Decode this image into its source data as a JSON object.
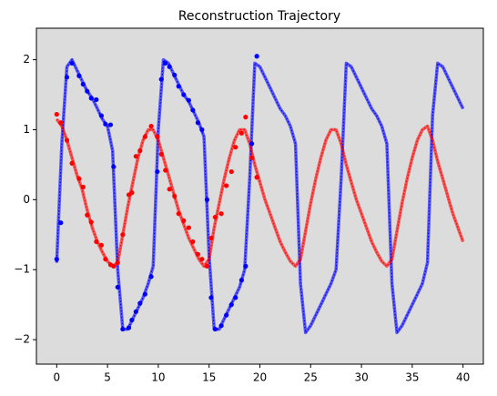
{
  "chart_data": {
    "type": "line",
    "title": "Reconstruction Trajectory",
    "background": "#dcdcdc",
    "xlim": [
      -2,
      42
    ],
    "ylim": [
      -2.35,
      2.45
    ],
    "xticks": [
      0,
      5,
      10,
      15,
      20,
      25,
      30,
      35,
      40
    ],
    "yticks": [
      {
        "value": -2,
        "label": "−2"
      },
      {
        "value": -1,
        "label": "−1"
      },
      0,
      1,
      2
    ],
    "x": [
      0,
      0.5,
      1,
      1.5,
      2,
      2.5,
      3,
      3.5,
      4,
      4.5,
      5,
      5.5,
      6,
      6.5,
      7,
      7.5,
      8,
      8.5,
      9,
      9.5,
      10,
      10.5,
      11,
      11.5,
      12,
      12.5,
      13,
      13.5,
      14,
      14.5,
      15,
      15.5,
      16,
      16.5,
      17,
      17.5,
      18,
      18.5,
      19,
      19.5,
      20,
      20.5,
      21,
      21.5,
      22,
      22.5,
      23,
      23.5,
      24,
      24.5,
      25,
      25.5,
      26,
      26.5,
      27,
      27.5,
      28,
      28.5,
      29,
      29.5,
      30,
      30.5,
      31,
      31.5,
      32,
      32.5,
      33,
      33.5,
      34,
      34.5,
      35,
      35.5,
      36,
      36.5,
      37,
      37.5,
      38,
      38.5,
      39,
      39.5,
      40
    ],
    "series": [
      {
        "color": "#0000ff",
        "values": [
          -0.9,
          0.8,
          1.9,
          2.0,
          1.85,
          1.7,
          1.55,
          1.45,
          1.3,
          1.15,
          1.05,
          0.7,
          -1.0,
          -1.85,
          -1.85,
          -1.7,
          -1.55,
          -1.4,
          -1.2,
          -0.95,
          1.0,
          2.0,
          1.95,
          1.8,
          1.65,
          1.5,
          1.4,
          1.25,
          1.1,
          0.9,
          -0.8,
          -1.85,
          -1.85,
          -1.7,
          -1.55,
          -1.4,
          -1.25,
          -1.0,
          0.3,
          1.95,
          1.9,
          1.75,
          1.6,
          1.45,
          1.3,
          1.2,
          1.05,
          0.8,
          -1.2,
          -1.9,
          -1.8,
          -1.65,
          -1.5,
          -1.35,
          -1.2,
          -1.0,
          0.3,
          1.95,
          1.9,
          1.75,
          1.6,
          1.45,
          1.3,
          1.2,
          1.05,
          0.8,
          -1.2,
          -1.9,
          -1.8,
          -1.65,
          -1.5,
          -1.35,
          -1.2,
          -0.9,
          1.2,
          1.95,
          1.9,
          1.75,
          1.6,
          1.45,
          1.3
        ]
      },
      {
        "color": "#ff0000",
        "values": [
          1.15,
          1.05,
          0.85,
          0.6,
          0.35,
          0.15,
          -0.15,
          -0.4,
          -0.6,
          -0.75,
          -0.88,
          -0.95,
          -0.9,
          -0.5,
          -0.1,
          0.25,
          0.6,
          0.85,
          1.0,
          1.0,
          0.85,
          0.6,
          0.35,
          0.1,
          -0.15,
          -0.35,
          -0.55,
          -0.7,
          -0.85,
          -0.95,
          -0.85,
          -0.4,
          -0.05,
          0.3,
          0.6,
          0.85,
          1.0,
          1.0,
          0.8,
          0.5,
          0.25,
          0.0,
          -0.2,
          -0.4,
          -0.6,
          -0.75,
          -0.88,
          -0.95,
          -0.85,
          -0.45,
          -0.05,
          0.3,
          0.6,
          0.85,
          1.0,
          1.0,
          0.8,
          0.5,
          0.25,
          0.0,
          -0.2,
          -0.4,
          -0.6,
          -0.75,
          -0.88,
          -0.95,
          -0.85,
          -0.45,
          -0.05,
          0.3,
          0.6,
          0.85,
          1.0,
          1.05,
          0.85,
          0.55,
          0.3,
          0.05,
          -0.2,
          -0.4,
          -0.6
        ]
      }
    ],
    "obs_x": [
      0,
      0.4,
      1,
      1.5,
      2.2,
      2.6,
      3,
      3.4,
      3.9,
      4.4,
      4.8,
      5.3,
      5.6,
      6,
      6.5,
      7.1,
      7.4,
      7.8,
      8.2,
      8.7,
      9.3,
      9.9,
      10.3,
      10.7,
      11.1,
      11.6,
      12,
      12.5,
      13,
      13.4,
      13.9,
      14.3,
      14.8,
      15.2,
      15.6,
      16.2,
      16.7,
      17.2,
      17.6,
      18.2,
      18.6,
      19.2,
      19.7
    ],
    "observations": [
      {
        "color": "#0000ff",
        "values": [
          -0.85,
          -0.33,
          1.75,
          1.95,
          1.77,
          1.65,
          1.55,
          1.45,
          1.43,
          1.2,
          1.08,
          1.07,
          0.47,
          -1.25,
          -1.85,
          -1.83,
          -1.72,
          -1.6,
          -1.48,
          -1.35,
          -1.1,
          0.4,
          1.72,
          1.95,
          1.9,
          1.78,
          1.62,
          1.5,
          1.42,
          1.28,
          1.1,
          1.0,
          0.0,
          -1.4,
          -1.85,
          -1.8,
          -1.65,
          -1.5,
          -1.4,
          -1.15,
          -0.95,
          0.8,
          2.05
        ]
      },
      {
        "color": "#ff0000",
        "values": [
          1.22,
          1.1,
          0.85,
          0.52,
          0.3,
          0.18,
          -0.22,
          -0.32,
          -0.6,
          -0.65,
          -0.85,
          -0.93,
          -0.95,
          -0.9,
          -0.5,
          0.07,
          0.1,
          0.62,
          0.7,
          0.9,
          1.05,
          0.9,
          0.65,
          0.42,
          0.15,
          0.05,
          -0.2,
          -0.3,
          -0.4,
          -0.6,
          -0.78,
          -0.85,
          -0.95,
          -0.55,
          -0.25,
          -0.2,
          0.2,
          0.4,
          0.75,
          0.95,
          1.18,
          0.6,
          0.32
        ]
      }
    ]
  }
}
